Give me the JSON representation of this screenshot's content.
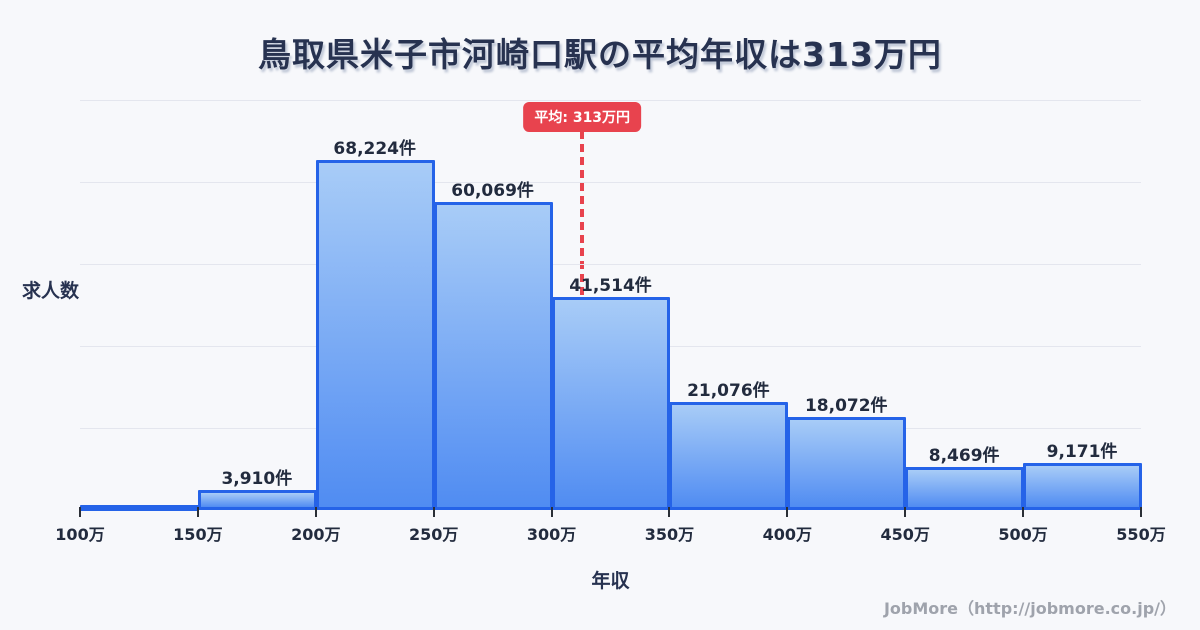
{
  "header": {
    "title": "鳥取県米子市河崎口駅の平均年収は313万円"
  },
  "chart_data": {
    "type": "bar",
    "title": "鳥取県米子市河崎口駅の平均年収は313万円",
    "xlabel": "年収",
    "ylabel": "求人数",
    "unit": "件",
    "x_tick_labels": [
      "100万",
      "150万",
      "200万",
      "250万",
      "300万",
      "350万",
      "400万",
      "450万",
      "500万",
      "550万"
    ],
    "bin_edges_man": [
      100,
      150,
      200,
      250,
      300,
      350,
      400,
      450,
      500,
      550
    ],
    "bins": [
      {
        "range": "100万-150万",
        "value": null,
        "label": ""
      },
      {
        "range": "150万-200万",
        "value": 3910,
        "label": "3,910件"
      },
      {
        "range": "200万-250万",
        "value": 68224,
        "label": "68,224件"
      },
      {
        "range": "250万-300万",
        "value": 60069,
        "label": "60,069件"
      },
      {
        "range": "300万-350万",
        "value": 41514,
        "label": "41,514件"
      },
      {
        "range": "350万-400万",
        "value": 21076,
        "label": "21,076件"
      },
      {
        "range": "400万-450万",
        "value": 18072,
        "label": "18,072件"
      },
      {
        "range": "450万-500万",
        "value": 8469,
        "label": "8,469件"
      },
      {
        "range": "500万-550万",
        "value": 9171,
        "label": "9,171件"
      }
    ],
    "average_line": {
      "label": "平均: 313万円",
      "value_man": 313
    },
    "ylim": [
      0,
      80000
    ],
    "gridline_count": 5,
    "grid": "horizontal",
    "legend": "none"
  },
  "footer": {
    "credit": "JobMore（http://jobmore.co.jp/）"
  },
  "colors": {
    "background": "#f7f8fb",
    "title_navy": "#273250",
    "label_navy": "#222b3e",
    "gridline": "#e4e6ee",
    "bar_border": "#2563e8",
    "bar_gradient_top": "#a8ccf7",
    "bar_gradient_bottom": "#508cf2",
    "average_red": "#e8434e",
    "tick_mark": "#2b2f36",
    "footer_gray": "#9fa3ac"
  }
}
